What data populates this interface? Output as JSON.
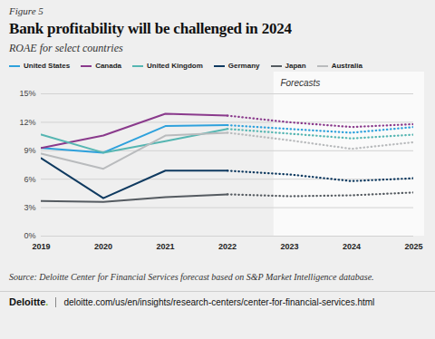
{
  "chart_data": {
    "type": "line",
    "figure_label": "Figure 5",
    "title": "Bank profitability will be challenged in 2024",
    "subtitle": "ROAE for select countries",
    "x": [
      2019,
      2020,
      2021,
      2022,
      2023,
      2024,
      2025
    ],
    "series": [
      {
        "name": "United States",
        "color": "#2ea1dc",
        "values": [
          9.3,
          8.8,
          11.6,
          11.7,
          11.3,
          10.9,
          11.5
        ]
      },
      {
        "name": "Canada",
        "color": "#8a3a8c",
        "values": [
          9.3,
          10.6,
          12.9,
          12.7,
          12.0,
          11.5,
          11.8
        ]
      },
      {
        "name": "United Kingdom",
        "color": "#56b6b2",
        "values": [
          10.7,
          8.8,
          10.0,
          11.3,
          10.8,
          10.3,
          10.7
        ]
      },
      {
        "name": "Germany",
        "color": "#0f3a60",
        "values": [
          8.2,
          4.0,
          6.9,
          6.9,
          6.5,
          5.8,
          6.1
        ]
      },
      {
        "name": "Japan",
        "color": "#555b61",
        "values": [
          3.7,
          3.6,
          4.1,
          4.4,
          4.2,
          4.3,
          4.6
        ]
      },
      {
        "name": "Australia",
        "color": "#b9bbbd",
        "values": [
          8.7,
          7.1,
          10.6,
          10.9,
          10.1,
          9.2,
          9.9
        ]
      }
    ],
    "xlim": [
      2019,
      2025
    ],
    "xticks": [
      2019,
      2020,
      2021,
      2022,
      2023,
      2024,
      2025
    ],
    "ylim": [
      0,
      15
    ],
    "yticks": [
      {
        "value": 0,
        "label": "0%"
      },
      {
        "value": 3,
        "label": "3%"
      },
      {
        "value": 6,
        "label": "6%"
      },
      {
        "value": 9,
        "label": "9%"
      },
      {
        "value": 12,
        "label": "12%"
      },
      {
        "value": 15,
        "label": "15%"
      }
    ],
    "grid": true,
    "legend": "top-left",
    "line_style": "solid",
    "forecast": {
      "label": "Forecasts",
      "start": 2022.75,
      "line_style": "dotted"
    },
    "source": "Source: Deloitte Center for Financial Services forecast based on S&P Market Intelligence database.",
    "footer": {
      "brand": "Deloitte.",
      "url": "deloitte.com/us/en/insights/research-centers/center-for-financial-services.html"
    }
  }
}
